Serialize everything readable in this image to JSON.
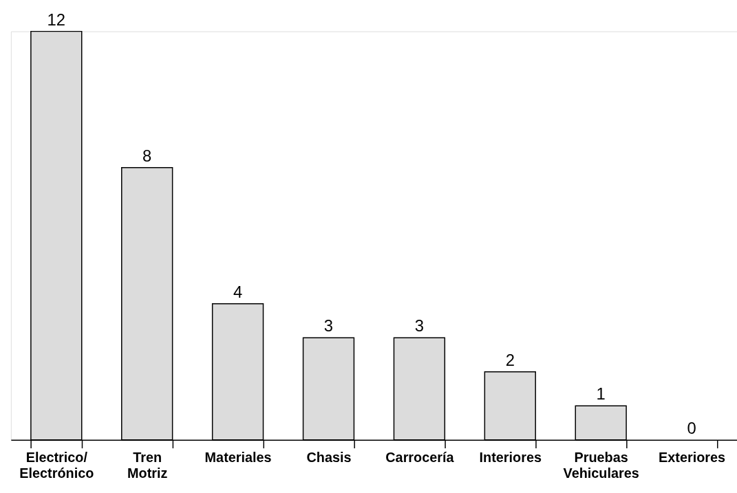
{
  "chart_data": {
    "type": "bar",
    "categories": [
      "Electrico/ Electrónico",
      "Tren Motriz",
      "Materiales",
      "Chasis",
      "Carrocería",
      "Interiores",
      "Pruebas Vehiculares",
      "Exteriores"
    ],
    "values": [
      12,
      8,
      4,
      3,
      3,
      2,
      1,
      0
    ],
    "color": "#dcdcdc",
    "data_labels": true,
    "grid": false
  }
}
